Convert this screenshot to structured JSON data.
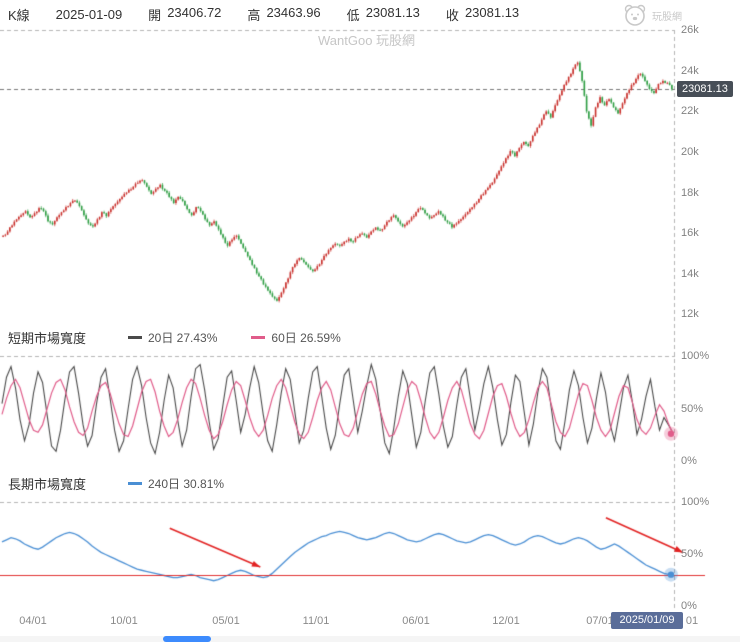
{
  "header": {
    "kline_label": "K線",
    "date": "2025-01-09",
    "open_label": "開",
    "open": "23406.72",
    "high_label": "高",
    "high": "23463.96",
    "low_label": "低",
    "low": "23081.13",
    "close_label": "收",
    "close": "23081.13",
    "logo_text": "玩股網"
  },
  "watermark": "WantGoo 玩股網",
  "price_axis": {
    "ticks": [
      "26k",
      "24k",
      "22k",
      "20k",
      "18k",
      "16k",
      "14k",
      "12k"
    ]
  },
  "percent_axis": {
    "ticks": [
      "100%",
      "50%",
      "0%"
    ]
  },
  "last_price_badge": "23081.13",
  "sections": {
    "short_breadth": {
      "title": "短期市場寬度",
      "legend": [
        {
          "label": "20日 27.43%",
          "color": "#4a4a4a"
        },
        {
          "label": "60日 26.59%",
          "color": "#e05c8a"
        }
      ]
    },
    "long_breadth": {
      "title": "長期市場寬度",
      "legend": [
        {
          "label": "240日 30.81%",
          "color": "#4a8fd4"
        }
      ]
    }
  },
  "x_axis": {
    "date_badge": "2025/01/09"
  },
  "chart_data": [
    {
      "type": "candlestick",
      "title": "K線 (加權指數)",
      "ylim": [
        12000,
        26000
      ],
      "y_ticks": [
        "26k",
        "24k",
        "22k",
        "20k",
        "18k",
        "16k",
        "14k",
        "12k"
      ],
      "x_ticks": [
        "04/01",
        "10/01",
        "05/01",
        "11/01",
        "06/01",
        "12/01",
        "07/01",
        "01"
      ],
      "up_color": "#c9302c",
      "down_color": "#2f9e44",
      "last_close": 23081.13,
      "last_day": {
        "open": 23406.72,
        "high": 23463.96,
        "low": 23081.13,
        "close": 23081.13
      },
      "closes": [
        15900,
        16100,
        16400,
        16700,
        16900,
        17100,
        16800,
        17000,
        17250,
        17100,
        16600,
        16450,
        16800,
        17050,
        17300,
        17500,
        17620,
        17350,
        16900,
        16500,
        16350,
        16700,
        17050,
        16850,
        17200,
        17450,
        17700,
        17950,
        18150,
        18300,
        18500,
        18620,
        18300,
        17950,
        18200,
        18400,
        18100,
        17800,
        17500,
        17800,
        17600,
        17200,
        16900,
        17300,
        17100,
        16700,
        16400,
        16600,
        16200,
        15800,
        15400,
        15700,
        15900,
        15500,
        15100,
        14700,
        14300,
        13900,
        13500,
        13200,
        12900,
        12700,
        13100,
        13600,
        14100,
        14500,
        14800,
        14600,
        14350,
        14150,
        14400,
        14700,
        15000,
        15300,
        15500,
        15400,
        15600,
        15750,
        15600,
        15850,
        16000,
        15800,
        16100,
        16300,
        16150,
        16400,
        16650,
        16900,
        16600,
        16350,
        16550,
        16800,
        17050,
        17250,
        17000,
        16750,
        16900,
        17100,
        16850,
        16550,
        16300,
        16500,
        16700,
        16950,
        17200,
        17450,
        17700,
        17950,
        18250,
        18500,
        18900,
        19300,
        19700,
        20050,
        19800,
        20200,
        20500,
        20300,
        20800,
        21200,
        21600,
        22000,
        21700,
        22300,
        22800,
        23300,
        23700,
        24100,
        24400,
        23500,
        22000,
        21300,
        22200,
        22700,
        22300,
        22600,
        22200,
        21900,
        22400,
        22900,
        23300,
        23600,
        23850,
        23500,
        23100,
        22900,
        23350,
        23500,
        23406.72,
        23081.13
      ]
    },
    {
      "type": "line",
      "title": "短期市場寬度",
      "ylim": [
        0,
        100
      ],
      "y_ticks": [
        "100%",
        "50%",
        "0%"
      ],
      "series": [
        {
          "name": "20日",
          "last_value": 27.43,
          "color": "#4a4a4a",
          "values": [
            55,
            80,
            90,
            70,
            40,
            20,
            35,
            65,
            85,
            75,
            45,
            15,
            10,
            30,
            60,
            85,
            90,
            65,
            35,
            15,
            25,
            55,
            80,
            88,
            60,
            30,
            10,
            20,
            50,
            78,
            90,
            72,
            42,
            18,
            8,
            28,
            58,
            82,
            70,
            40,
            15,
            30,
            62,
            88,
            92,
            68,
            38,
            12,
            22,
            52,
            80,
            86,
            58,
            28,
            45,
            70,
            90,
            75,
            45,
            20,
            10,
            35,
            65,
            88,
            78,
            48,
            18,
            30,
            60,
            85,
            90,
            62,
            32,
            12,
            25,
            55,
            82,
            88,
            58,
            28,
            48,
            72,
            92,
            78,
            48,
            18,
            8,
            32,
            62,
            86,
            74,
            44,
            14,
            28,
            58,
            84,
            90,
            64,
            34,
            14,
            24,
            54,
            80,
            88,
            60,
            30,
            50,
            74,
            90,
            70,
            40,
            16,
            26,
            56,
            82,
            76,
            46,
            16,
            36,
            66,
            88,
            80,
            50,
            20,
            12,
            38,
            68,
            86,
            72,
            42,
            18,
            32,
            60,
            84,
            66,
            36,
            20,
            44,
            70,
            82,
            56,
            26,
            40,
            62,
            78,
            52,
            30,
            42,
            35,
            27.43
          ]
        },
        {
          "name": "60日",
          "last_value": 26.59,
          "color": "#e05c8a",
          "values": [
            45,
            60,
            72,
            78,
            70,
            55,
            40,
            30,
            28,
            35,
            50,
            65,
            75,
            78,
            68,
            52,
            38,
            28,
            25,
            32,
            48,
            62,
            72,
            75,
            65,
            50,
            36,
            26,
            24,
            34,
            50,
            66,
            76,
            78,
            66,
            48,
            34,
            24,
            28,
            40,
            56,
            70,
            78,
            74,
            60,
            44,
            30,
            22,
            26,
            38,
            54,
            68,
            76,
            72,
            58,
            42,
            30,
            24,
            30,
            44,
            60,
            72,
            78,
            70,
            54,
            38,
            26,
            22,
            28,
            42,
            58,
            70,
            76,
            68,
            52,
            36,
            26,
            24,
            32,
            48,
            64,
            74,
            76,
            64,
            48,
            34,
            24,
            26,
            36,
            52,
            68,
            76,
            72,
            58,
            42,
            28,
            22,
            28,
            42,
            58,
            70,
            76,
            68,
            52,
            36,
            26,
            22,
            30,
            46,
            62,
            72,
            74,
            62,
            46,
            32,
            24,
            28,
            40,
            56,
            70,
            76,
            70,
            54,
            38,
            28,
            24,
            32,
            48,
            64,
            74,
            72,
            58,
            42,
            30,
            24,
            30,
            46,
            62,
            72,
            70,
            56,
            40,
            30,
            26,
            32,
            44,
            54,
            48,
            36,
            26.59
          ]
        }
      ]
    },
    {
      "type": "line",
      "title": "長期市場寬度",
      "ylim": [
        0,
        100
      ],
      "y_ticks": [
        "100%",
        "50%",
        "0%"
      ],
      "hline": {
        "value": 30,
        "color": "#e03131"
      },
      "arrows": [
        {
          "from": [
            0.25,
            75
          ],
          "to": [
            0.385,
            38
          ],
          "color": "#e22222"
        },
        {
          "from": [
            0.9,
            85
          ],
          "to": [
            1.015,
            52
          ],
          "color": "#e22222"
        }
      ],
      "series": [
        {
          "name": "240日",
          "last_value": 30.81,
          "color": "#4a8fd4",
          "values": [
            62,
            64,
            66,
            65,
            63,
            60,
            58,
            56,
            55,
            57,
            60,
            63,
            66,
            68,
            70,
            71,
            70,
            68,
            65,
            62,
            58,
            55,
            52,
            50,
            48,
            46,
            44,
            42,
            40,
            38,
            36,
            35,
            34,
            33,
            32,
            31,
            30,
            29,
            28,
            28,
            29,
            30,
            31,
            30,
            28,
            27,
            26,
            25,
            26,
            28,
            30,
            32,
            34,
            35,
            34,
            32,
            30,
            29,
            28,
            29,
            32,
            36,
            40,
            44,
            48,
            52,
            55,
            58,
            61,
            63,
            65,
            67,
            68,
            70,
            71,
            72,
            71,
            70,
            68,
            66,
            65,
            64,
            65,
            66,
            68,
            70,
            71,
            70,
            68,
            66,
            64,
            63,
            62,
            63,
            65,
            67,
            69,
            70,
            69,
            67,
            65,
            63,
            62,
            61,
            62,
            64,
            66,
            68,
            69,
            68,
            66,
            64,
            62,
            60,
            59,
            60,
            62,
            65,
            67,
            68,
            67,
            65,
            63,
            61,
            60,
            61,
            63,
            65,
            66,
            65,
            63,
            60,
            57,
            55,
            56,
            58,
            60,
            58,
            55,
            52,
            49,
            46,
            43,
            40,
            38,
            36,
            34,
            32,
            31,
            30.81
          ]
        }
      ]
    }
  ]
}
